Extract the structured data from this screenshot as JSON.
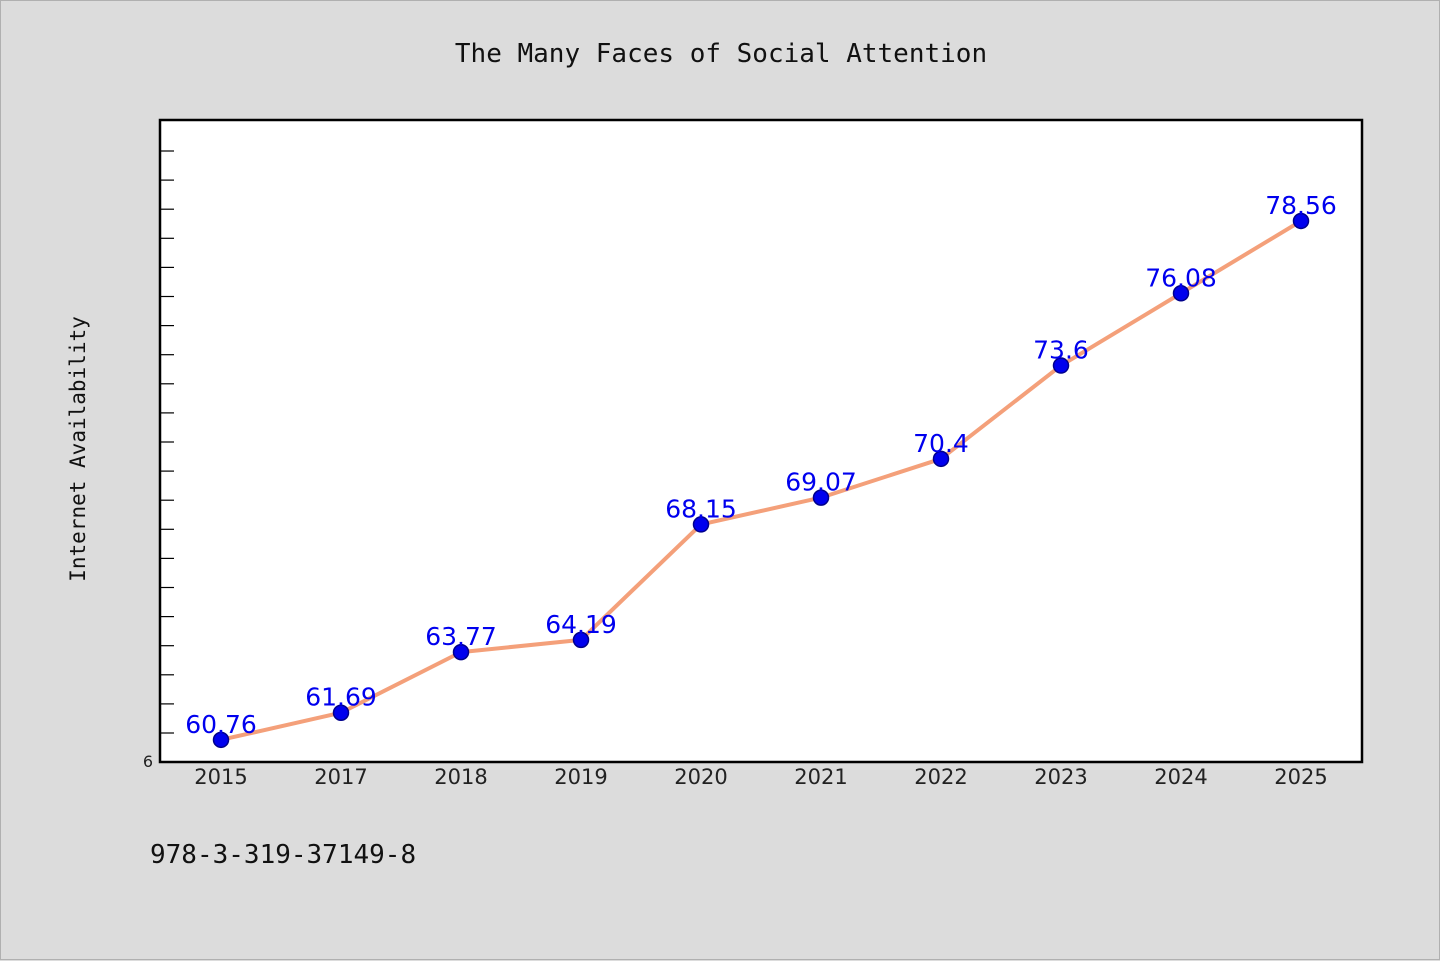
{
  "chart_data": {
    "type": "line",
    "title": "The Many Faces of Social Attention",
    "xlabel": "",
    "ylabel": "Internet Availability",
    "categories": [
      "2015",
      "2017",
      "2018",
      "2019",
      "2020",
      "2021",
      "2022",
      "2023",
      "2024",
      "2025"
    ],
    "series": [
      {
        "values": [
          60.76,
          61.69,
          63.77,
          64.19,
          68.15,
          69.07,
          70.4,
          73.6,
          76.08,
          78.56
        ],
        "data_labels": [
          "60.76",
          "61.69",
          "63.77",
          "64.19",
          "68.15",
          "69.07",
          "70.4",
          "73.6",
          "76.08",
          "78.56"
        ]
      }
    ],
    "y_axis_visible_tick_label": "6",
    "ylim": [
      60,
      82
    ],
    "grid": false,
    "legend": "none",
    "colors": {
      "line": "#f4a07a",
      "marker_fill": "#0000ee",
      "marker_edge": "#00008b",
      "data_label": "#0000ee",
      "plot_background": "#ffffff",
      "figure_background": "#dcdcdc"
    }
  },
  "footer": {
    "isbn": "978-3-319-37149-8"
  }
}
